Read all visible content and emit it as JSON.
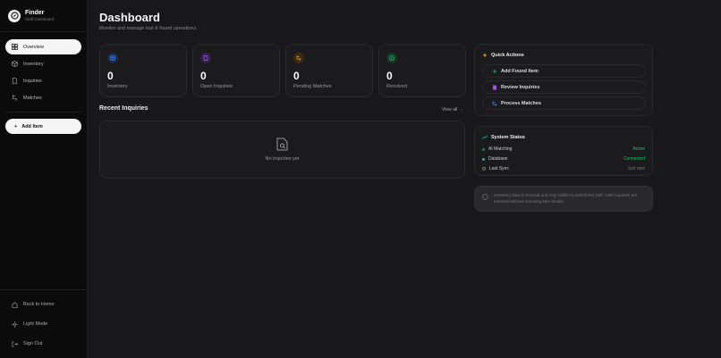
{
  "sidebar": {
    "brand": "Finder",
    "subtitle": "Staff Dashboard",
    "items": [
      {
        "label": "Overview",
        "icon": "grid-icon",
        "active": true
      },
      {
        "label": "Inventory",
        "icon": "box-icon"
      },
      {
        "label": "Inquiries",
        "icon": "file-icon"
      },
      {
        "label": "Matches",
        "icon": "swap-icon"
      }
    ],
    "add_item": "Add Item",
    "bottom": [
      {
        "label": "Back to Home",
        "icon": "home-icon"
      },
      {
        "label": "Light Mode",
        "icon": "sun-icon"
      },
      {
        "label": "Sign Out",
        "icon": "sign-out-icon"
      }
    ]
  },
  "header": {
    "title": "Dashboard",
    "subtitle": "Monitor and manage lost & found operations"
  },
  "stats": [
    {
      "value": "0",
      "label": "Inventory",
      "color": "#3b82f6"
    },
    {
      "value": "0",
      "label": "Open Inquiries",
      "color": "#a855f7"
    },
    {
      "value": "0",
      "label": "Pending Matches",
      "color": "#f59e0b"
    },
    {
      "value": "0",
      "label": "Resolved",
      "color": "#22c55e"
    }
  ],
  "recent": {
    "title": "Recent Inquiries",
    "view_all": "View all →",
    "empty": "No inquiries yet"
  },
  "quick_actions": {
    "title": "Quick Actions",
    "items": [
      {
        "label": "Add Found Item",
        "color": "#22c55e"
      },
      {
        "label": "Review Inquiries",
        "color": "#a855f7"
      },
      {
        "label": "Process Matches",
        "color": "#3b82f6"
      }
    ]
  },
  "system_status": {
    "title": "System Status",
    "rows": [
      {
        "label": "AI Matching",
        "value": "Active",
        "color": "#22c55e"
      },
      {
        "label": "Database",
        "value": "Connected",
        "color": "#22c55e"
      },
      {
        "label": "Last Sync",
        "value": "Just now",
        "color": "#777777"
      }
    ]
  },
  "note": "Inventory data is secured and only visible to authorized staff. User inquiries are matched without exposing item details."
}
